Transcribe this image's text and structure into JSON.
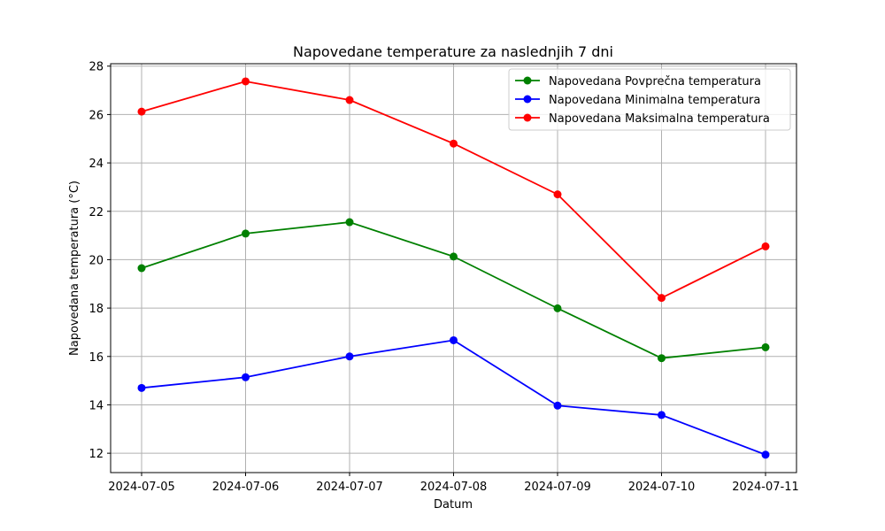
{
  "chart_data": {
    "type": "line",
    "title": "Napovedane temperature za naslednjih 7 dni",
    "xlabel": "Datum",
    "ylabel": "Napovedana temperatura (°C)",
    "categories": [
      "2024-07-05",
      "2024-07-06",
      "2024-07-07",
      "2024-07-08",
      "2024-07-09",
      "2024-07-10",
      "2024-07-11"
    ],
    "ylim": [
      11.2,
      28.1
    ],
    "yticks": [
      12,
      14,
      16,
      18,
      20,
      22,
      24,
      26,
      28
    ],
    "grid": true,
    "legend_position": "top-right",
    "series": [
      {
        "name": "Napovedana Povprečna temperatura",
        "color": "#008000",
        "values": [
          19.65,
          21.08,
          21.55,
          20.13,
          17.99,
          15.93,
          16.38
        ]
      },
      {
        "name": "Napovedana Minimalna temperatura",
        "color": "#0000ff",
        "values": [
          14.7,
          15.14,
          16.0,
          16.67,
          13.97,
          13.58,
          11.94
        ]
      },
      {
        "name": "Napovedana Maksimalna temperatura",
        "color": "#ff0000",
        "values": [
          26.12,
          27.37,
          26.6,
          24.8,
          22.7,
          18.42,
          20.55
        ]
      }
    ]
  }
}
